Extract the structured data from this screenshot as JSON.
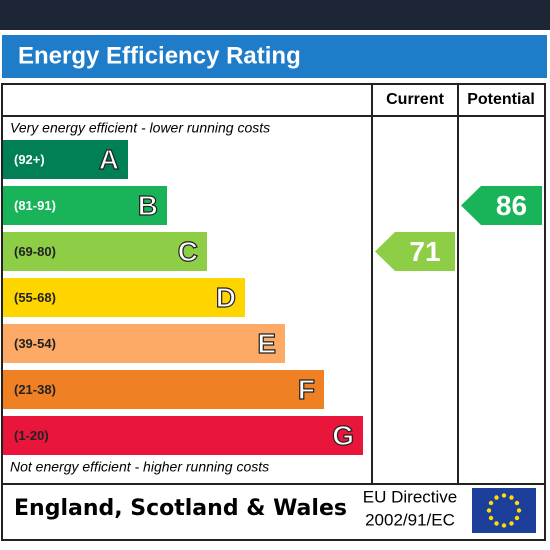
{
  "title": "Energy Efficiency Rating",
  "columns": [
    "Current",
    "Potential"
  ],
  "top_note": "Very energy efficient - lower running costs",
  "bottom_note": "Not energy efficient - higher running costs",
  "bands": [
    {
      "range": "(92+)",
      "letter": "A",
      "color": "#008054"
    },
    {
      "range": "(81-91)",
      "letter": "B",
      "color": "#19b459"
    },
    {
      "range": "(69-80)",
      "letter": "C",
      "color": "#8dce46"
    },
    {
      "range": "(55-68)",
      "letter": "D",
      "color": "#ffd500"
    },
    {
      "range": "(39-54)",
      "letter": "E",
      "color": "#fcaa65"
    },
    {
      "range": "(21-38)",
      "letter": "F",
      "color": "#ef8023"
    },
    {
      "range": "(1-20)",
      "letter": "G",
      "color": "#e9153b"
    }
  ],
  "current": 71,
  "potential": 86,
  "footer": {
    "region": "England, Scotland & Wales",
    "directive": [
      "EU Directive",
      "2002/91/EC"
    ]
  }
}
